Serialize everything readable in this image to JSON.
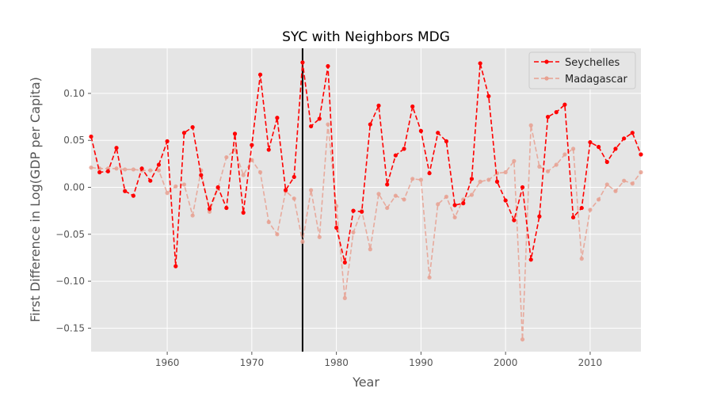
{
  "chart_data": {
    "type": "line",
    "title": "SYC with Neighbors MDG",
    "xlabel": "Year",
    "ylabel": "First Difference in Log(GDP per Capita)",
    "xlim": [
      1951,
      2016
    ],
    "ylim": [
      -0.175,
      0.148
    ],
    "x_ticks": [
      1960,
      1970,
      1980,
      1990,
      2000,
      2010
    ],
    "y_ticks": [
      -0.15,
      -0.1,
      -0.05,
      0.0,
      0.05,
      0.1
    ],
    "y_tick_labels": [
      "−0.15",
      "−0.10",
      "−0.05",
      "0.00",
      "0.05",
      "0.10"
    ],
    "grid": true,
    "legend_position": "top-right",
    "vertical_line_x": 1976,
    "x": [
      1951,
      1952,
      1953,
      1954,
      1955,
      1956,
      1957,
      1958,
      1959,
      1960,
      1961,
      1962,
      1963,
      1964,
      1965,
      1966,
      1967,
      1968,
      1969,
      1970,
      1971,
      1972,
      1973,
      1974,
      1975,
      1976,
      1977,
      1978,
      1979,
      1980,
      1981,
      1982,
      1983,
      1984,
      1985,
      1986,
      1987,
      1988,
      1989,
      1990,
      1991,
      1992,
      1993,
      1994,
      1995,
      1996,
      1997,
      1998,
      1999,
      2000,
      2001,
      2002,
      2003,
      2004,
      2005,
      2006,
      2007,
      2008,
      2009,
      2010,
      2011,
      2012,
      2013,
      2014,
      2015,
      2016
    ],
    "series": [
      {
        "name": "Seychelles",
        "color": "#ff0000",
        "style": "dashed",
        "values": [
          0.054,
          0.016,
          0.017,
          0.042,
          -0.004,
          -0.009,
          0.02,
          0.007,
          0.024,
          0.049,
          -0.084,
          0.058,
          0.064,
          0.013,
          -0.023,
          0.0,
          -0.022,
          0.057,
          -0.027,
          0.045,
          0.12,
          0.04,
          0.074,
          -0.003,
          0.011,
          0.133,
          0.065,
          0.073,
          0.129,
          -0.043,
          -0.08,
          -0.025,
          -0.026,
          0.067,
          0.087,
          0.003,
          0.034,
          0.041,
          0.086,
          0.06,
          0.015,
          0.058,
          0.049,
          -0.019,
          -0.017,
          0.009,
          0.132,
          0.097,
          0.006,
          -0.014,
          -0.035,
          0.0,
          -0.077,
          -0.031,
          0.075,
          0.08,
          0.088,
          -0.032,
          -0.022,
          0.048,
          0.043,
          0.027,
          0.041,
          0.052,
          0.058,
          0.035
        ]
      },
      {
        "name": "Madagascar",
        "color": "#e8a090",
        "style": "dashed",
        "values": [
          0.021,
          0.02,
          0.02,
          0.02,
          0.019,
          0.019,
          0.018,
          0.018,
          0.018,
          -0.006,
          0.001,
          0.003,
          -0.03,
          0.018,
          -0.026,
          -0.001,
          0.032,
          0.04,
          0.013,
          0.029,
          0.016,
          -0.037,
          -0.05,
          -0.004,
          -0.012,
          -0.058,
          -0.003,
          -0.053,
          0.067,
          -0.02,
          -0.118,
          -0.048,
          -0.025,
          -0.066,
          -0.007,
          -0.022,
          -0.009,
          -0.013,
          0.009,
          0.008,
          -0.096,
          -0.018,
          -0.01,
          -0.032,
          -0.013,
          -0.008,
          0.006,
          0.008,
          0.015,
          0.016,
          0.028,
          -0.162,
          0.066,
          0.022,
          0.017,
          0.024,
          0.035,
          0.041,
          -0.076,
          -0.024,
          -0.013,
          0.003,
          -0.004,
          0.007,
          0.004,
          0.016
        ]
      }
    ]
  }
}
